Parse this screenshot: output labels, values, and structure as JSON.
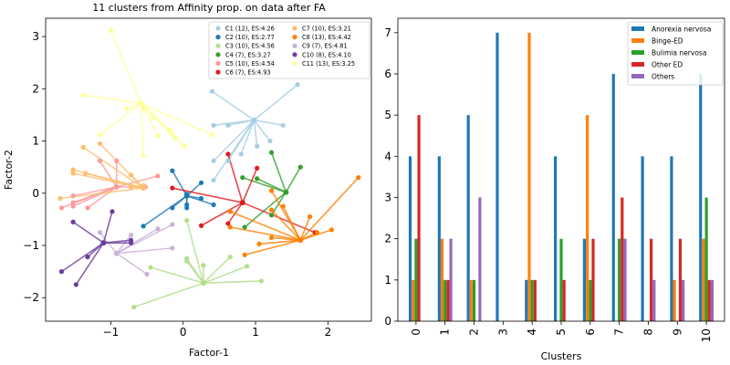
{
  "chart_data": [
    {
      "type": "scatter",
      "title": "11 clusters from Affinity prop. on data after FA",
      "xlabel": "Factor-1",
      "ylabel": "Factor-2",
      "xlim": [
        -1.9,
        2.6
      ],
      "ylim": [
        -2.45,
        3.35
      ],
      "xticks": [
        -1,
        0,
        1,
        2
      ],
      "yticks": [
        -2,
        -1,
        0,
        1,
        2,
        3
      ],
      "legend_position": "top-right",
      "clusters": [
        {
          "name": "C1 (12), ES:4.26",
          "color": "#a6cee3",
          "center": [
            0.98,
            1.4
          ],
          "points": [
            [
              0.4,
              1.95
            ],
            [
              1.58,
              2.08
            ],
            [
              0.42,
              1.3
            ],
            [
              0.62,
              1.3
            ],
            [
              1.38,
              1.3
            ],
            [
              1.2,
              1.0
            ],
            [
              1.02,
              0.9
            ],
            [
              0.8,
              0.75
            ],
            [
              0.42,
              0.62
            ],
            [
              0.62,
              0.62
            ],
            [
              0.42,
              0.25
            ]
          ]
        },
        {
          "name": "C2 (10), ES:2.77",
          "color": "#1f78b4",
          "center": [
            0.05,
            -0.05
          ],
          "points": [
            [
              -0.15,
              0.43
            ],
            [
              0.25,
              0.2
            ],
            [
              0.05,
              -0.22
            ],
            [
              0.05,
              -0.28
            ],
            [
              0.25,
              -0.1
            ],
            [
              0.42,
              -0.22
            ],
            [
              -0.15,
              -0.28
            ],
            [
              -0.55,
              -0.63
            ],
            [
              0.05,
              -0.02
            ]
          ]
        },
        {
          "name": "C3 (10), ES:4.56",
          "color": "#b2df8a",
          "center": [
            0.28,
            -1.72
          ],
          "points": [
            [
              0.05,
              -0.52
            ],
            [
              0.05,
              -1.25
            ],
            [
              0.05,
              -1.3
            ],
            [
              0.28,
              -1.38
            ],
            [
              -0.45,
              -1.42
            ],
            [
              0.88,
              -1.4
            ],
            [
              0.65,
              -1.22
            ],
            [
              1.08,
              -1.68
            ],
            [
              -0.68,
              -2.18
            ]
          ]
        },
        {
          "name": "C4 (7), ES:3.27",
          "color": "#33a02c",
          "center": [
            1.42,
            0.02
          ],
          "points": [
            [
              1.22,
              0.78
            ],
            [
              1.62,
              0.5
            ],
            [
              0.82,
              0.3
            ],
            [
              1.02,
              0.28
            ],
            [
              1.22,
              -0.42
            ],
            [
              0.85,
              -0.65
            ]
          ]
        },
        {
          "name": "C5 (10), ES:4.54",
          "color": "#fb9a99",
          "center": [
            -0.92,
            0.12
          ],
          "points": [
            [
              -1.15,
              0.62
            ],
            [
              -0.92,
              0.62
            ],
            [
              -0.35,
              0.33
            ],
            [
              -1.52,
              -0.05
            ],
            [
              -1.52,
              -0.18
            ],
            [
              -1.52,
              -0.25
            ],
            [
              -1.32,
              -0.28
            ],
            [
              -1.68,
              -0.28
            ],
            [
              -0.52,
              0.12
            ]
          ]
        },
        {
          "name": "C6 (7), ES:4.93",
          "color": "#e31a1c",
          "center": [
            0.82,
            -0.18
          ],
          "points": [
            [
              0.62,
              0.75
            ],
            [
              1.02,
              0.48
            ],
            [
              -0.15,
              0.1
            ],
            [
              0.25,
              -0.62
            ],
            [
              0.62,
              -0.58
            ],
            [
              1.82,
              -0.75
            ]
          ]
        },
        {
          "name": "C7 (10), ES:3.21",
          "color": "#fdbf6f",
          "center": [
            -0.55,
            0.1
          ],
          "points": [
            [
              -1.38,
              0.88
            ],
            [
              -1.15,
              0.95
            ],
            [
              -1.52,
              0.45
            ],
            [
              -1.35,
              0.38
            ],
            [
              -1.52,
              0.38
            ],
            [
              -1.7,
              -0.1
            ],
            [
              -0.72,
              0.35
            ],
            [
              -0.55,
              0.15
            ],
            [
              -0.72,
              0.12
            ]
          ]
        },
        {
          "name": "C8 (13), ES:4.42",
          "color": "#ff7f00",
          "center": [
            1.62,
            -0.9
          ],
          "points": [
            [
              2.42,
              0.3
            ],
            [
              1.22,
              0.05
            ],
            [
              1.38,
              -0.25
            ],
            [
              1.22,
              -0.32
            ],
            [
              0.65,
              -0.35
            ],
            [
              1.75,
              -0.45
            ],
            [
              0.65,
              -0.65
            ],
            [
              2.05,
              -0.7
            ],
            [
              1.85,
              -0.75
            ],
            [
              1.22,
              -0.85
            ],
            [
              1.05,
              -0.97
            ],
            [
              0.85,
              -1.18
            ]
          ]
        },
        {
          "name": "C9 (7), ES:4.81",
          "color": "#cab2d6",
          "center": [
            -0.92,
            -1.15
          ],
          "points": [
            [
              -1.15,
              -0.75
            ],
            [
              -0.72,
              -0.8
            ],
            [
              -0.35,
              -0.68
            ],
            [
              -0.15,
              -0.6
            ],
            [
              -0.15,
              -1.05
            ],
            [
              -0.5,
              -1.55
            ]
          ]
        },
        {
          "name": "C10 (8), ES:4.10",
          "color": "#6a3d9a",
          "center": [
            -1.1,
            -0.95
          ],
          "points": [
            [
              -1.52,
              -0.55
            ],
            [
              -0.98,
              -0.35
            ],
            [
              -0.72,
              -0.9
            ],
            [
              -0.72,
              -0.95
            ],
            [
              -1.32,
              -1.22
            ],
            [
              -1.68,
              -1.5
            ],
            [
              -1.48,
              -1.75
            ]
          ]
        },
        {
          "name": "C11 (13), ES:3.25",
          "color": "#ffff99",
          "center": [
            -0.58,
            1.72
          ],
          "points": [
            [
              -1.0,
              3.12
            ],
            [
              -1.38,
              1.88
            ],
            [
              -0.78,
              1.62
            ],
            [
              -0.55,
              1.62
            ],
            [
              -0.4,
              1.45
            ],
            [
              -0.18,
              1.2
            ],
            [
              -0.15,
              1.12
            ],
            [
              -0.35,
              1.1
            ],
            [
              -0.1,
              1.05
            ],
            [
              -1.15,
              1.12
            ],
            [
              0.02,
              0.9
            ],
            [
              -0.55,
              0.72
            ],
            [
              0.4,
              1.12
            ]
          ]
        }
      ]
    },
    {
      "type": "bar",
      "xlabel": "Clusters",
      "ylabel": "",
      "ylim": [
        0,
        7.35
      ],
      "yticks": [
        0,
        1,
        2,
        3,
        4,
        5,
        6,
        7
      ],
      "legend_position": "top-right",
      "categories": [
        "0",
        "1",
        "2",
        "3",
        "4",
        "5",
        "6",
        "7",
        "8",
        "9",
        "10"
      ],
      "series": [
        {
          "name": "Anorexia nervosa",
          "color": "#1f77b4",
          "values": [
            4,
            4,
            5,
            7,
            1,
            4,
            2,
            6,
            4,
            4,
            6
          ]
        },
        {
          "name": "Binge-ED",
          "color": "#ff7f0e",
          "values": [
            1,
            2,
            1,
            0,
            7,
            0,
            5,
            0,
            0,
            1,
            2
          ]
        },
        {
          "name": "Bulimia nervosa",
          "color": "#2ca02c",
          "values": [
            2,
            1,
            1,
            0,
            1,
            2,
            1,
            2,
            0,
            0,
            3
          ]
        },
        {
          "name": "Other ED",
          "color": "#d62728",
          "values": [
            5,
            1,
            0,
            0,
            1,
            1,
            2,
            3,
            2,
            2,
            1
          ]
        },
        {
          "name": "Others",
          "color": "#9467bd",
          "values": [
            0,
            2,
            3,
            0,
            0,
            0,
            0,
            2,
            1,
            1,
            1
          ]
        }
      ]
    }
  ]
}
